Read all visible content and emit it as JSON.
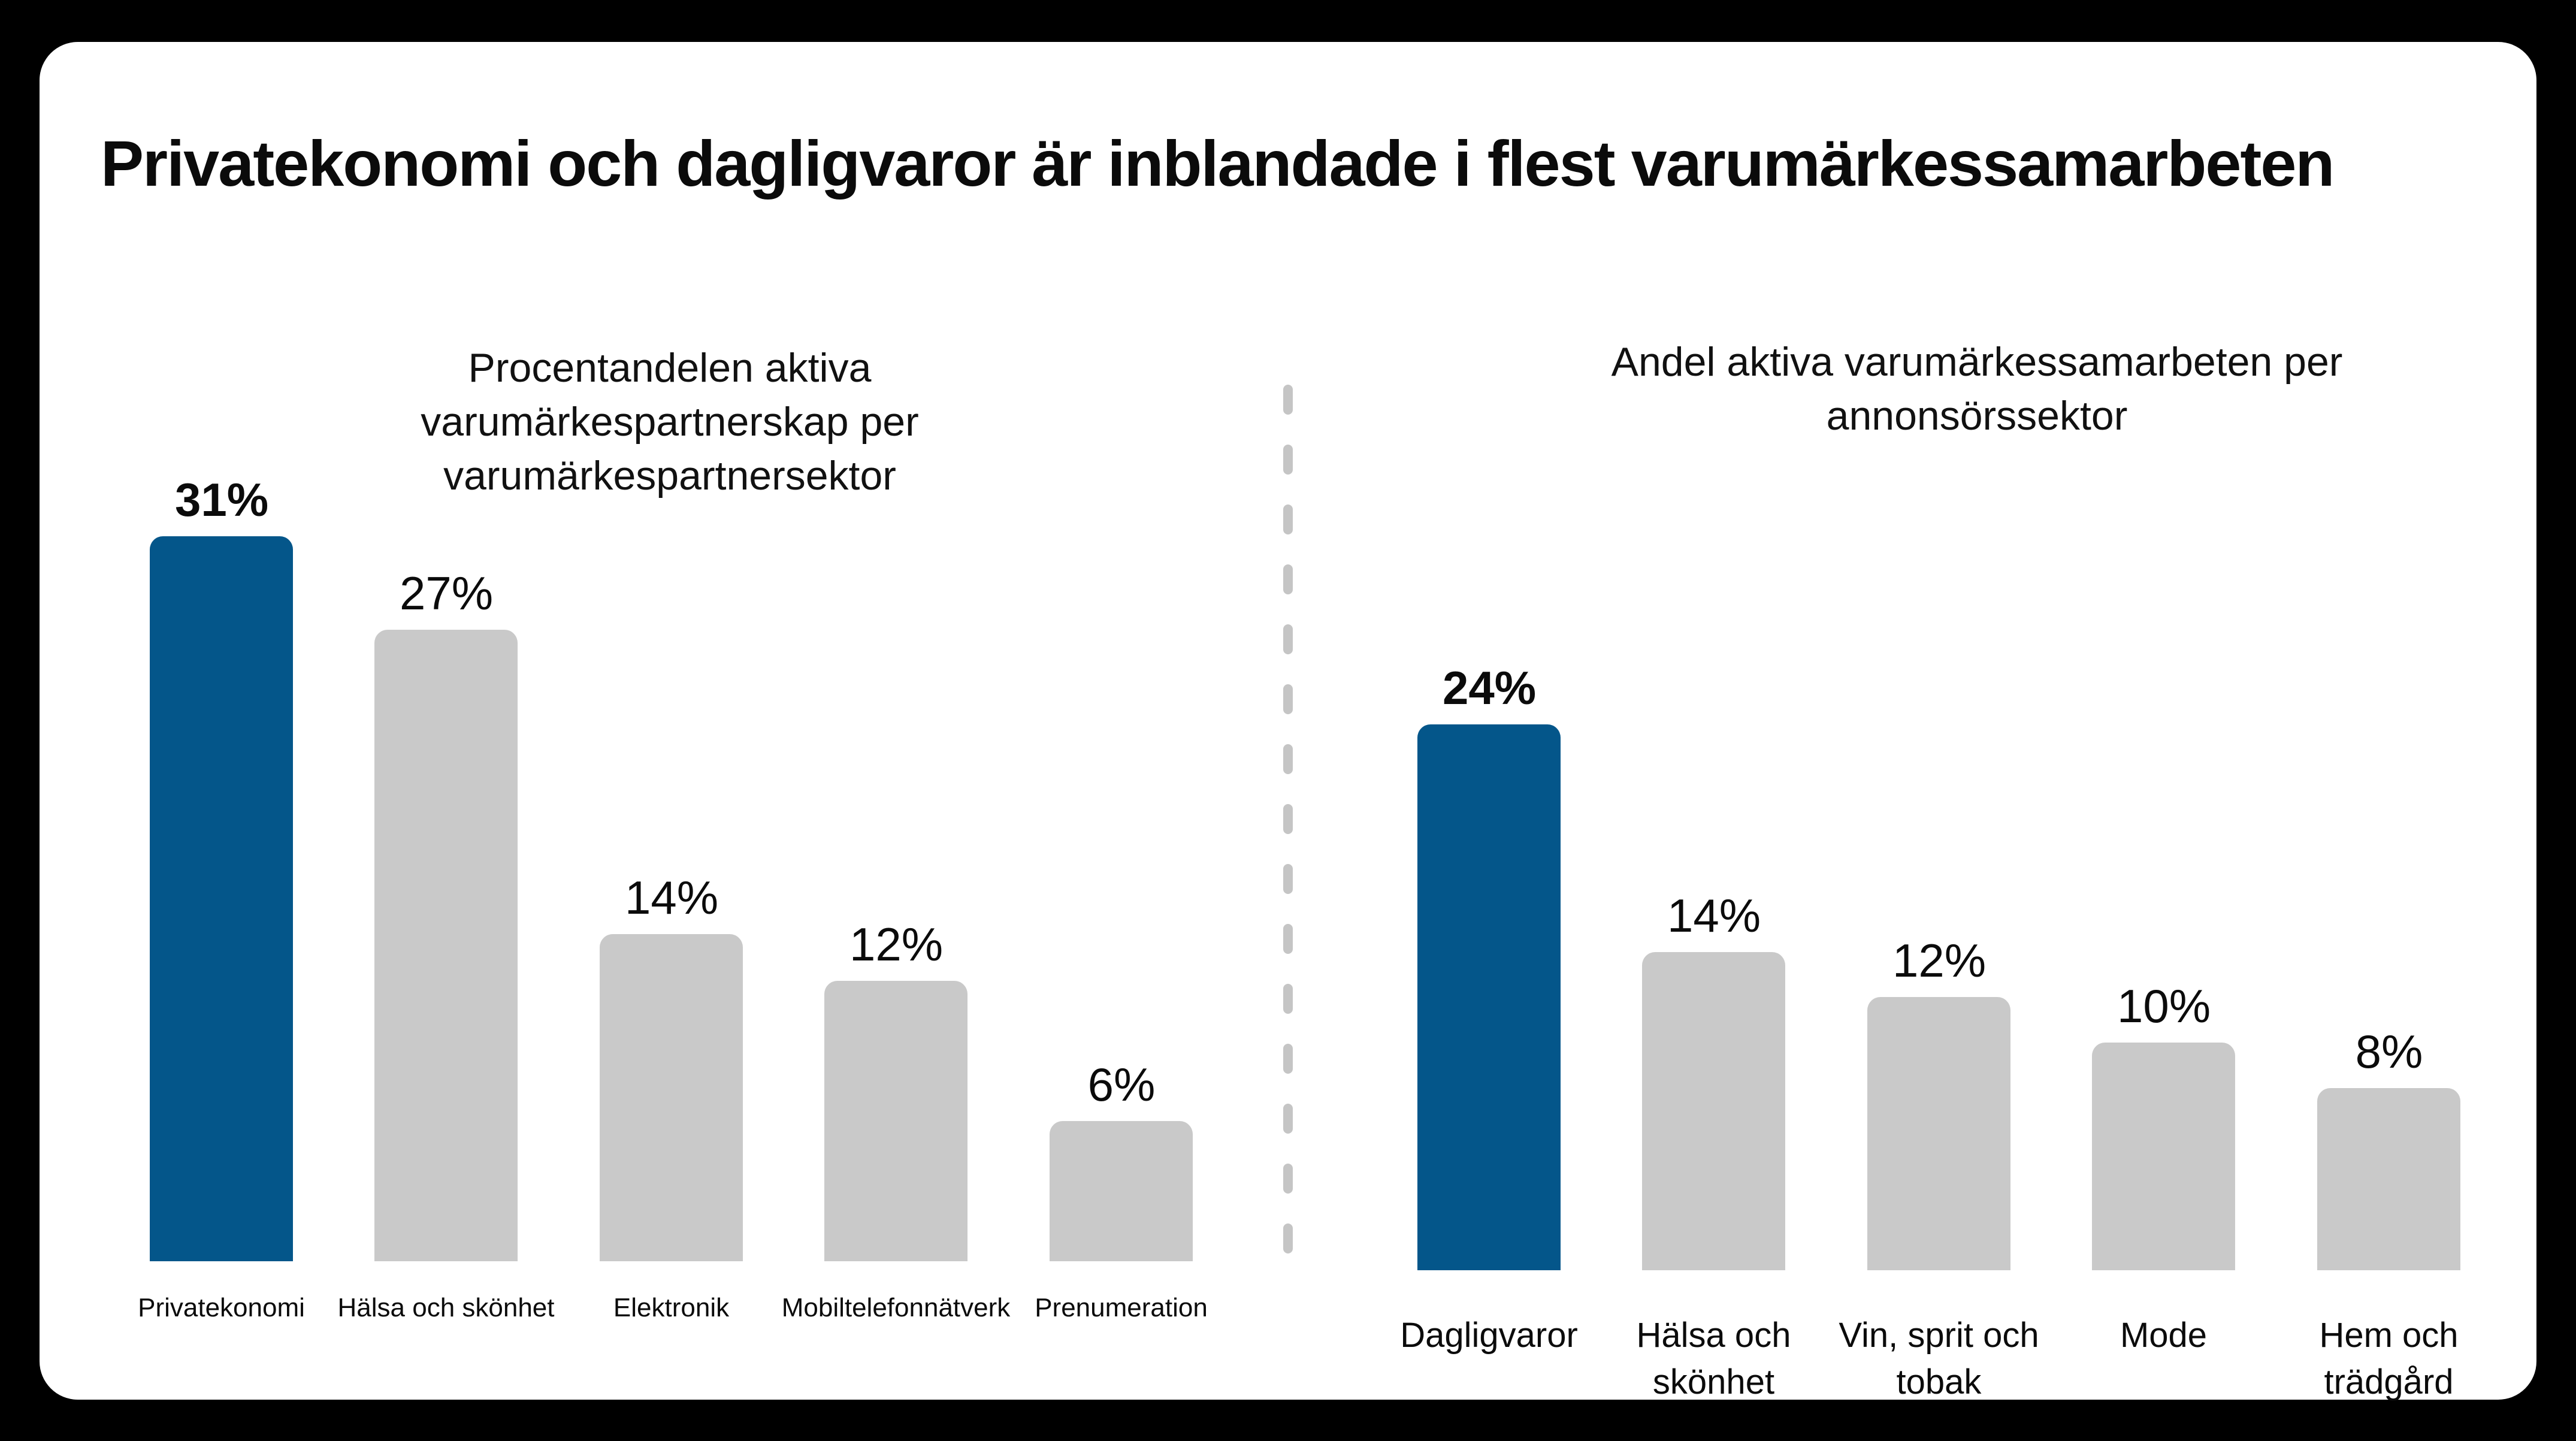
{
  "slide": {
    "title": "Privatekonomi och dagligvaror är inblandade i flest varumärkessamarbeten",
    "colors": {
      "background": "#000000",
      "card": "#FFFFFF",
      "divider": "#C5C5C5",
      "text": "#0B0B0B"
    }
  },
  "chart_data": [
    {
      "type": "bar",
      "title": "Procentandelen aktiva varumärkespartnerskap per varumärkespartnersektor",
      "title_lines": [
        "Procentandelen aktiva",
        "varumärkespartnerskap per",
        "varumärkespartnersektor"
      ],
      "categories": [
        "Privatekonomi",
        "Hälsa och skönhet",
        "Elektronik",
        "Mobiltelefonnätverk",
        "Prenumeration"
      ],
      "category_lines": [
        [
          "Privatekonomi"
        ],
        [
          "Hälsa och skönhet"
        ],
        [
          "Elektronik"
        ],
        [
          "Mobiltelefonnätverk"
        ],
        [
          "Prenumeration"
        ]
      ],
      "values": [
        31,
        27,
        14,
        12,
        6
      ],
      "value_labels": [
        "31%",
        "27%",
        "14%",
        "12%",
        "6%"
      ],
      "unit": "%",
      "ylim": [
        0,
        31
      ],
      "grid": false,
      "legend": false,
      "highlight_index": 0,
      "colors": {
        "highlight": "#04568A",
        "default": "#C9C9C9"
      }
    },
    {
      "type": "bar",
      "title": "Andel aktiva varumärkessamarbeten per annonsörssektor",
      "title_lines": [
        "Andel aktiva varumärkessamarbeten per",
        "annonsörssektor"
      ],
      "categories": [
        "Dagligvaror",
        "Hälsa och skönhet",
        "Vin, sprit och tobak",
        "Mode",
        "Hem och trädgård"
      ],
      "category_lines": [
        [
          "Dagligvaror"
        ],
        [
          "Hälsa och",
          "skönhet"
        ],
        [
          "Vin, sprit och",
          "tobak"
        ],
        [
          "Mode"
        ],
        [
          "Hem och",
          "trädgård"
        ]
      ],
      "values": [
        24,
        14,
        12,
        10,
        8
      ],
      "value_labels": [
        "24%",
        "14%",
        "12%",
        "10%",
        "8%"
      ],
      "unit": "%",
      "ylim": [
        0,
        24
      ],
      "grid": false,
      "legend": false,
      "highlight_index": 0,
      "colors": {
        "highlight": "#04568A",
        "default": "#C9C9C9"
      }
    }
  ]
}
